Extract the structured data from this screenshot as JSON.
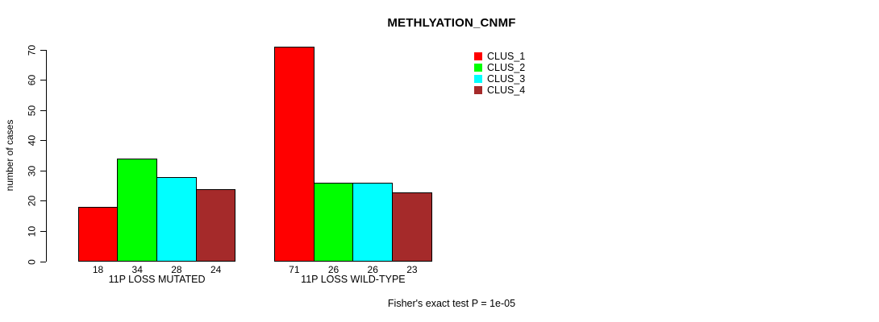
{
  "chart_data": {
    "type": "bar",
    "title": "METHLYATION_CNMF",
    "ylabel": "number of cases",
    "xlabel": "",
    "ylim": [
      0,
      70
    ],
    "yticks": [
      0,
      10,
      20,
      30,
      40,
      50,
      60,
      70
    ],
    "grid": false,
    "legend_position": "top-right",
    "categories": [
      "11P LOSS MUTATED",
      "11P LOSS WILD-TYPE"
    ],
    "series": [
      {
        "name": "CLUS_1",
        "color": "#FF0000",
        "values": [
          18,
          71
        ]
      },
      {
        "name": "CLUS_2",
        "color": "#00FF00",
        "values": [
          34,
          26
        ]
      },
      {
        "name": "CLUS_3",
        "color": "#00FFFF",
        "values": [
          28,
          26
        ]
      },
      {
        "name": "CLUS_4",
        "color": "#A52A2A",
        "values": [
          24,
          23
        ]
      }
    ],
    "bar_value_labels": [
      [
        18,
        34,
        28,
        24
      ],
      [
        71,
        26,
        26,
        23
      ]
    ],
    "annotation": "Fisher's exact test P = 1e-05"
  }
}
